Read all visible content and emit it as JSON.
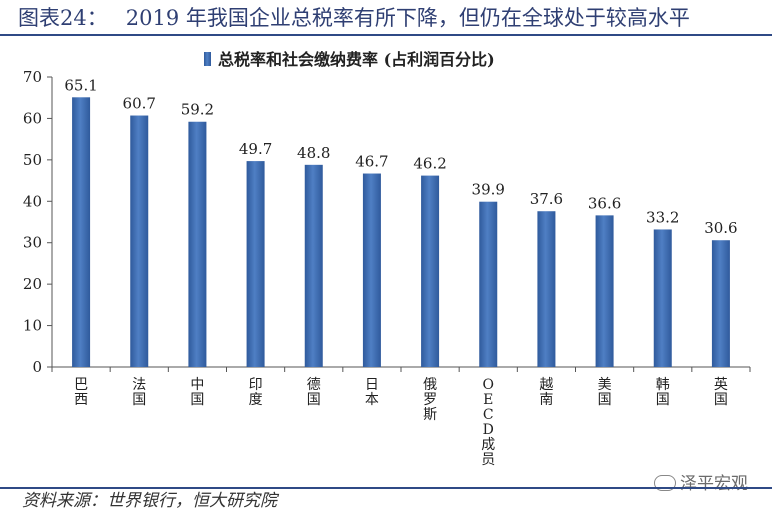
{
  "figure": {
    "number": "图表24：",
    "title": "2019 年我国企业总税率有所下降，但仍在全球处于较高水平"
  },
  "source": "资料来源：世界银行，恒大研究院",
  "watermark": "泽平宏观",
  "colors": {
    "bar": "#4f7fc4",
    "bar_dark": "#2f5a9c",
    "axis": "#555555",
    "title": "#2f3f73"
  },
  "chart_data": {
    "type": "bar",
    "categories": [
      "巴西",
      "法国",
      "中国",
      "印度",
      "德国",
      "日本",
      "俄罗斯",
      "OECD成员",
      "越南",
      "美国",
      "韩国",
      "英国"
    ],
    "series": [
      {
        "name": "总税率和社会缴纳费率 (占利润百分比)",
        "values": [
          65.1,
          60.7,
          59.2,
          49.7,
          48.8,
          46.7,
          46.2,
          39.9,
          37.6,
          36.6,
          33.2,
          30.6
        ]
      }
    ],
    "ylim": [
      0,
      70
    ],
    "yticks": [
      0,
      10,
      20,
      30,
      40,
      50,
      60,
      70
    ],
    "legend_position": "top-center",
    "grid": false,
    "xlabel": "",
    "ylabel": ""
  }
}
